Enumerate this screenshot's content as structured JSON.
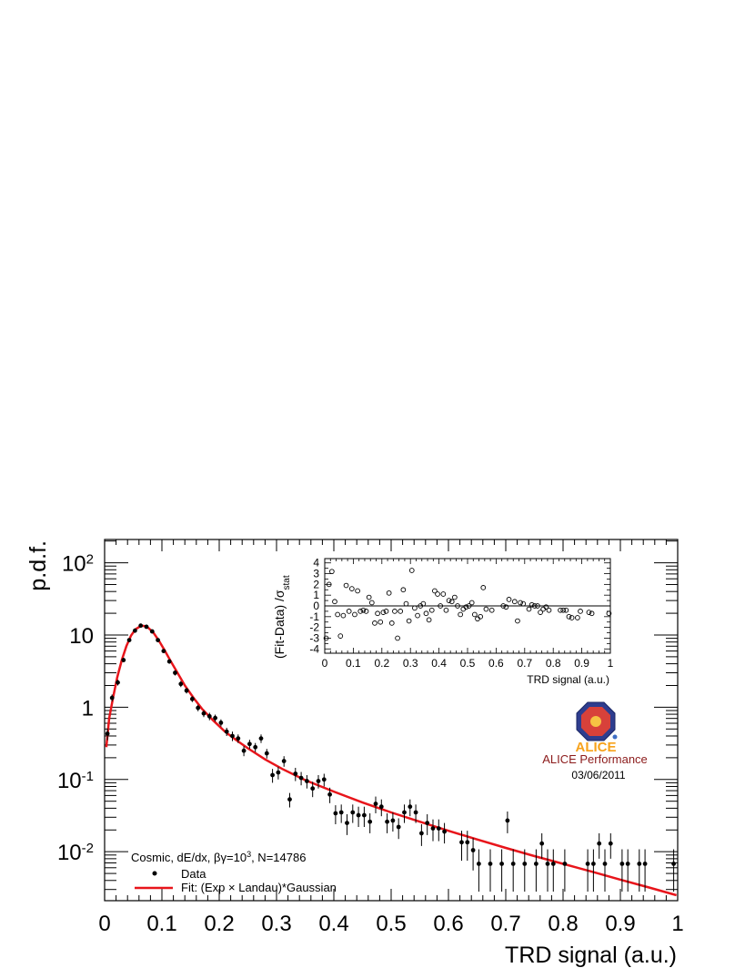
{
  "chart_data": {
    "type": "scatter",
    "xlabel": "TRD signal (a.u.)",
    "ylabel": "p.d.f.",
    "xlim": [
      0,
      1
    ],
    "ylim": [
      0.0021,
      210
    ],
    "y_scale": "log",
    "x_ticks": [
      {
        "v": 0,
        "label": "0"
      },
      {
        "v": 0.1,
        "label": "0.1"
      },
      {
        "v": 0.2,
        "label": "0.2"
      },
      {
        "v": 0.3,
        "label": "0.3"
      },
      {
        "v": 0.4,
        "label": "0.4"
      },
      {
        "v": 0.5,
        "label": "0.5"
      },
      {
        "v": 0.6,
        "label": "0.6"
      },
      {
        "v": 0.7,
        "label": "0.7"
      },
      {
        "v": 0.8,
        "label": "0.8"
      },
      {
        "v": 0.9,
        "label": "0.9"
      },
      {
        "v": 1,
        "label": "1"
      }
    ],
    "y_ticks": [
      {
        "v": 0.01,
        "base": "10",
        "exp": "-2"
      },
      {
        "v": 0.1,
        "base": "10",
        "exp": "-1"
      },
      {
        "v": 1,
        "base": "1",
        "exp": ""
      },
      {
        "v": 10,
        "base": "10",
        "exp": ""
      },
      {
        "v": 100,
        "base": "10",
        "exp": "2"
      }
    ],
    "legend": {
      "position": "bottom-left",
      "header": {
        "text": "Cosmic, dE/dx, βγ=10",
        "sup": "3",
        "tail": ", N=14786"
      },
      "entries": [
        {
          "label": "Data",
          "marker": "point"
        },
        {
          "label": "Fit: (Exp × Landau)*Gaussian",
          "marker": "line"
        }
      ]
    },
    "series": [
      {
        "name": "Data",
        "color": "#000000",
        "points": [
          [
            0.005,
            0.43,
            0.08
          ],
          [
            0.013,
            1.35,
            0.15
          ],
          [
            0.023,
            2.2,
            0.2
          ],
          [
            0.033,
            4.5,
            0.3
          ],
          [
            0.043,
            8.5,
            0.4
          ],
          [
            0.053,
            11.5,
            0.5
          ],
          [
            0.063,
            13.5,
            0.5
          ],
          [
            0.073,
            13.0,
            0.5
          ],
          [
            0.083,
            11.2,
            0.5
          ],
          [
            0.093,
            8.5,
            0.4
          ],
          [
            0.103,
            6.0,
            0.35
          ],
          [
            0.113,
            4.3,
            0.3
          ],
          [
            0.123,
            3.0,
            0.25
          ],
          [
            0.133,
            2.1,
            0.2
          ],
          [
            0.143,
            1.7,
            0.15
          ],
          [
            0.153,
            1.3,
            0.12
          ],
          [
            0.163,
            0.98,
            0.1
          ],
          [
            0.173,
            0.82,
            0.09
          ],
          [
            0.183,
            0.75,
            0.09
          ],
          [
            0.193,
            0.71,
            0.08
          ],
          [
            0.203,
            0.61,
            0.07
          ],
          [
            0.213,
            0.46,
            0.06
          ],
          [
            0.223,
            0.4,
            0.06
          ],
          [
            0.233,
            0.37,
            0.05
          ],
          [
            0.243,
            0.25,
            0.04
          ],
          [
            0.253,
            0.31,
            0.045
          ],
          [
            0.263,
            0.28,
            0.04
          ],
          [
            0.273,
            0.37,
            0.05
          ],
          [
            0.283,
            0.23,
            0.035
          ],
          [
            0.293,
            0.115,
            0.025
          ],
          [
            0.303,
            0.125,
            0.025
          ],
          [
            0.313,
            0.18,
            0.03
          ],
          [
            0.323,
            0.053,
            0.012
          ],
          [
            0.333,
            0.12,
            0.025
          ],
          [
            0.343,
            0.105,
            0.022
          ],
          [
            0.353,
            0.095,
            0.02
          ],
          [
            0.363,
            0.075,
            0.018
          ],
          [
            0.373,
            0.095,
            0.02
          ],
          [
            0.383,
            0.1,
            0.02
          ],
          [
            0.393,
            0.062,
            0.015
          ],
          [
            0.403,
            0.034,
            0.01
          ],
          [
            0.413,
            0.035,
            0.01
          ],
          [
            0.423,
            0.025,
            0.008
          ],
          [
            0.433,
            0.035,
            0.01
          ],
          [
            0.443,
            0.032,
            0.01
          ],
          [
            0.453,
            0.032,
            0.01
          ],
          [
            0.463,
            0.026,
            0.008
          ],
          [
            0.473,
            0.046,
            0.012
          ],
          [
            0.483,
            0.042,
            0.011
          ],
          [
            0.493,
            0.026,
            0.008
          ],
          [
            0.503,
            0.027,
            0.008
          ],
          [
            0.513,
            0.022,
            0.007
          ],
          [
            0.523,
            0.035,
            0.01
          ],
          [
            0.533,
            0.042,
            0.011
          ],
          [
            0.543,
            0.035,
            0.01
          ],
          [
            0.553,
            0.018,
            0.006
          ],
          [
            0.563,
            0.025,
            0.008
          ],
          [
            0.573,
            0.021,
            0.007
          ],
          [
            0.583,
            0.021,
            0.007
          ],
          [
            0.593,
            0.019,
            0.006
          ],
          [
            0.623,
            0.0135,
            0.006
          ],
          [
            0.633,
            0.0135,
            0.006
          ],
          [
            0.643,
            0.0105,
            0.005
          ],
          [
            0.653,
            0.0068,
            0.004
          ],
          [
            0.673,
            0.0068,
            0.004
          ],
          [
            0.693,
            0.0068,
            0.004
          ],
          [
            0.703,
            0.027,
            0.009
          ],
          [
            0.713,
            0.0068,
            0.004
          ],
          [
            0.733,
            0.0068,
            0.004
          ],
          [
            0.753,
            0.0068,
            0.004
          ],
          [
            0.763,
            0.013,
            0.005
          ],
          [
            0.773,
            0.0068,
            0.004
          ],
          [
            0.783,
            0.0068,
            0.004
          ],
          [
            0.803,
            0.0068,
            0.004
          ],
          [
            0.843,
            0.0068,
            0.004
          ],
          [
            0.853,
            0.0068,
            0.004
          ],
          [
            0.863,
            0.013,
            0.005
          ],
          [
            0.873,
            0.0068,
            0.004
          ],
          [
            0.883,
            0.013,
            0.005
          ],
          [
            0.903,
            0.0068,
            0.004
          ],
          [
            0.913,
            0.0068,
            0.004
          ],
          [
            0.933,
            0.0068,
            0.004
          ],
          [
            0.943,
            0.0068,
            0.004
          ],
          [
            0.993,
            0.0068,
            0.004
          ]
        ]
      },
      {
        "name": "Fit: (Exp × Landau)*Gaussian",
        "color": "#e8151b",
        "points": [
          [
            0.003,
            0.28
          ],
          [
            0.008,
            0.7
          ],
          [
            0.015,
            1.4
          ],
          [
            0.022,
            2.6
          ],
          [
            0.03,
            4.5
          ],
          [
            0.038,
            7.0
          ],
          [
            0.046,
            9.8
          ],
          [
            0.054,
            12.0
          ],
          [
            0.062,
            13.2
          ],
          [
            0.068,
            13.4
          ],
          [
            0.075,
            12.8
          ],
          [
            0.085,
            10.8
          ],
          [
            0.095,
            8.3
          ],
          [
            0.105,
            6.1
          ],
          [
            0.115,
            4.4
          ],
          [
            0.125,
            3.2
          ],
          [
            0.14,
            2.0
          ],
          [
            0.155,
            1.35
          ],
          [
            0.17,
            0.95
          ],
          [
            0.19,
            0.65
          ],
          [
            0.21,
            0.46
          ],
          [
            0.23,
            0.35
          ],
          [
            0.25,
            0.27
          ],
          [
            0.28,
            0.19
          ],
          [
            0.31,
            0.14
          ],
          [
            0.35,
            0.098
          ],
          [
            0.4,
            0.068
          ],
          [
            0.45,
            0.048
          ],
          [
            0.5,
            0.035
          ],
          [
            0.55,
            0.026
          ],
          [
            0.6,
            0.0195
          ],
          [
            0.65,
            0.0148
          ],
          [
            0.7,
            0.0113
          ],
          [
            0.75,
            0.0087
          ],
          [
            0.8,
            0.0068
          ],
          [
            0.85,
            0.0053
          ],
          [
            0.9,
            0.0041
          ],
          [
            0.95,
            0.0032
          ],
          [
            0.998,
            0.0025
          ]
        ]
      }
    ],
    "inset": {
      "ylabel_main": "(Fit-Data) /σ",
      "ylabel_sub": "stat",
      "xlabel": "TRD signal (a.u.)",
      "xlim": [
        0,
        1
      ],
      "ylim": [
        -4.4,
        4.4
      ],
      "x_ticks": [
        {
          "v": 0,
          "label": "0"
        },
        {
          "v": 0.1,
          "label": "0.1"
        },
        {
          "v": 0.2,
          "label": "0.2"
        },
        {
          "v": 0.3,
          "label": "0.3"
        },
        {
          "v": 0.4,
          "label": "0.4"
        },
        {
          "v": 0.5,
          "label": "0.5"
        },
        {
          "v": 0.6,
          "label": "0.6"
        },
        {
          "v": 0.7,
          "label": "0.7"
        },
        {
          "v": 0.8,
          "label": "0.8"
        },
        {
          "v": 0.9,
          "label": "0.9"
        },
        {
          "v": 1,
          "label": "1"
        }
      ],
      "y_ticks": [
        {
          "v": 4,
          "label": "4"
        },
        {
          "v": 3,
          "label": "3"
        },
        {
          "v": 2,
          "label": "2"
        },
        {
          "v": 1,
          "label": "1"
        },
        {
          "v": 0,
          "label": "0"
        },
        {
          "v": -1,
          "label": "-1"
        },
        {
          "v": -2,
          "label": "-2"
        },
        {
          "v": -3,
          "label": "-3"
        },
        {
          "v": -4,
          "label": "-4"
        }
      ],
      "residuals": [
        [
          0.005,
          -3.0
        ],
        [
          0.015,
          2.0
        ],
        [
          0.025,
          3.2
        ],
        [
          0.035,
          0.4
        ],
        [
          0.045,
          -0.8
        ],
        [
          0.055,
          -2.8
        ],
        [
          0.065,
          -0.9
        ],
        [
          0.075,
          1.9
        ],
        [
          0.085,
          -0.5
        ],
        [
          0.095,
          1.6
        ],
        [
          0.105,
          -0.8
        ],
        [
          0.115,
          1.4
        ],
        [
          0.125,
          -0.5
        ],
        [
          0.135,
          -0.4
        ],
        [
          0.145,
          -0.5
        ],
        [
          0.155,
          0.8
        ],
        [
          0.165,
          0.3
        ],
        [
          0.175,
          -1.6
        ],
        [
          0.185,
          -0.7
        ],
        [
          0.195,
          -1.5
        ],
        [
          0.205,
          -0.6
        ],
        [
          0.215,
          -0.5
        ],
        [
          0.225,
          1.2
        ],
        [
          0.235,
          -1.6
        ],
        [
          0.245,
          -0.5
        ],
        [
          0.255,
          -3.0
        ],
        [
          0.265,
          -0.5
        ],
        [
          0.275,
          1.5
        ],
        [
          0.285,
          0.2
        ],
        [
          0.295,
          -1.4
        ],
        [
          0.305,
          3.3
        ],
        [
          0.315,
          -0.2
        ],
        [
          0.325,
          -0.9
        ],
        [
          0.335,
          0.0
        ],
        [
          0.345,
          0.2
        ],
        [
          0.355,
          -0.7
        ],
        [
          0.365,
          -1.3
        ],
        [
          0.375,
          -0.4
        ],
        [
          0.385,
          1.4
        ],
        [
          0.395,
          1.1
        ],
        [
          0.405,
          0.0
        ],
        [
          0.415,
          1.1
        ],
        [
          0.425,
          -0.4
        ],
        [
          0.435,
          0.5
        ],
        [
          0.445,
          0.4
        ],
        [
          0.455,
          0.8
        ],
        [
          0.465,
          0.0
        ],
        [
          0.475,
          -0.8
        ],
        [
          0.485,
          -0.3
        ],
        [
          0.495,
          -0.1
        ],
        [
          0.505,
          0.0
        ],
        [
          0.515,
          0.3
        ],
        [
          0.525,
          -0.8
        ],
        [
          0.535,
          -1.2
        ],
        [
          0.545,
          -1.0
        ],
        [
          0.555,
          1.7
        ],
        [
          0.565,
          -0.3
        ],
        [
          0.585,
          -0.4
        ],
        [
          0.625,
          0.0
        ],
        [
          0.635,
          -0.1
        ],
        [
          0.645,
          0.6
        ],
        [
          0.665,
          0.4
        ],
        [
          0.675,
          -1.4
        ],
        [
          0.685,
          0.3
        ],
        [
          0.695,
          0.2
        ],
        [
          0.715,
          -0.3
        ],
        [
          0.725,
          0.1
        ],
        [
          0.735,
          0.0
        ],
        [
          0.745,
          0.0
        ],
        [
          0.755,
          -0.6
        ],
        [
          0.765,
          -0.3
        ],
        [
          0.775,
          -0.1
        ],
        [
          0.785,
          -0.4
        ],
        [
          0.825,
          -0.4
        ],
        [
          0.835,
          -0.4
        ],
        [
          0.845,
          -0.4
        ],
        [
          0.855,
          -1.0
        ],
        [
          0.865,
          -1.1
        ],
        [
          0.885,
          -1.1
        ],
        [
          0.895,
          -0.5
        ],
        [
          0.925,
          -0.6
        ],
        [
          0.935,
          -0.7
        ],
        [
          0.995,
          -0.7
        ]
      ]
    }
  },
  "logo": {
    "text": "ALICE",
    "caption": "ALICE Performance",
    "date": "03/06/2011",
    "caption_color": "#8b1a1a",
    "logo_text_color": "#f7a21b"
  }
}
